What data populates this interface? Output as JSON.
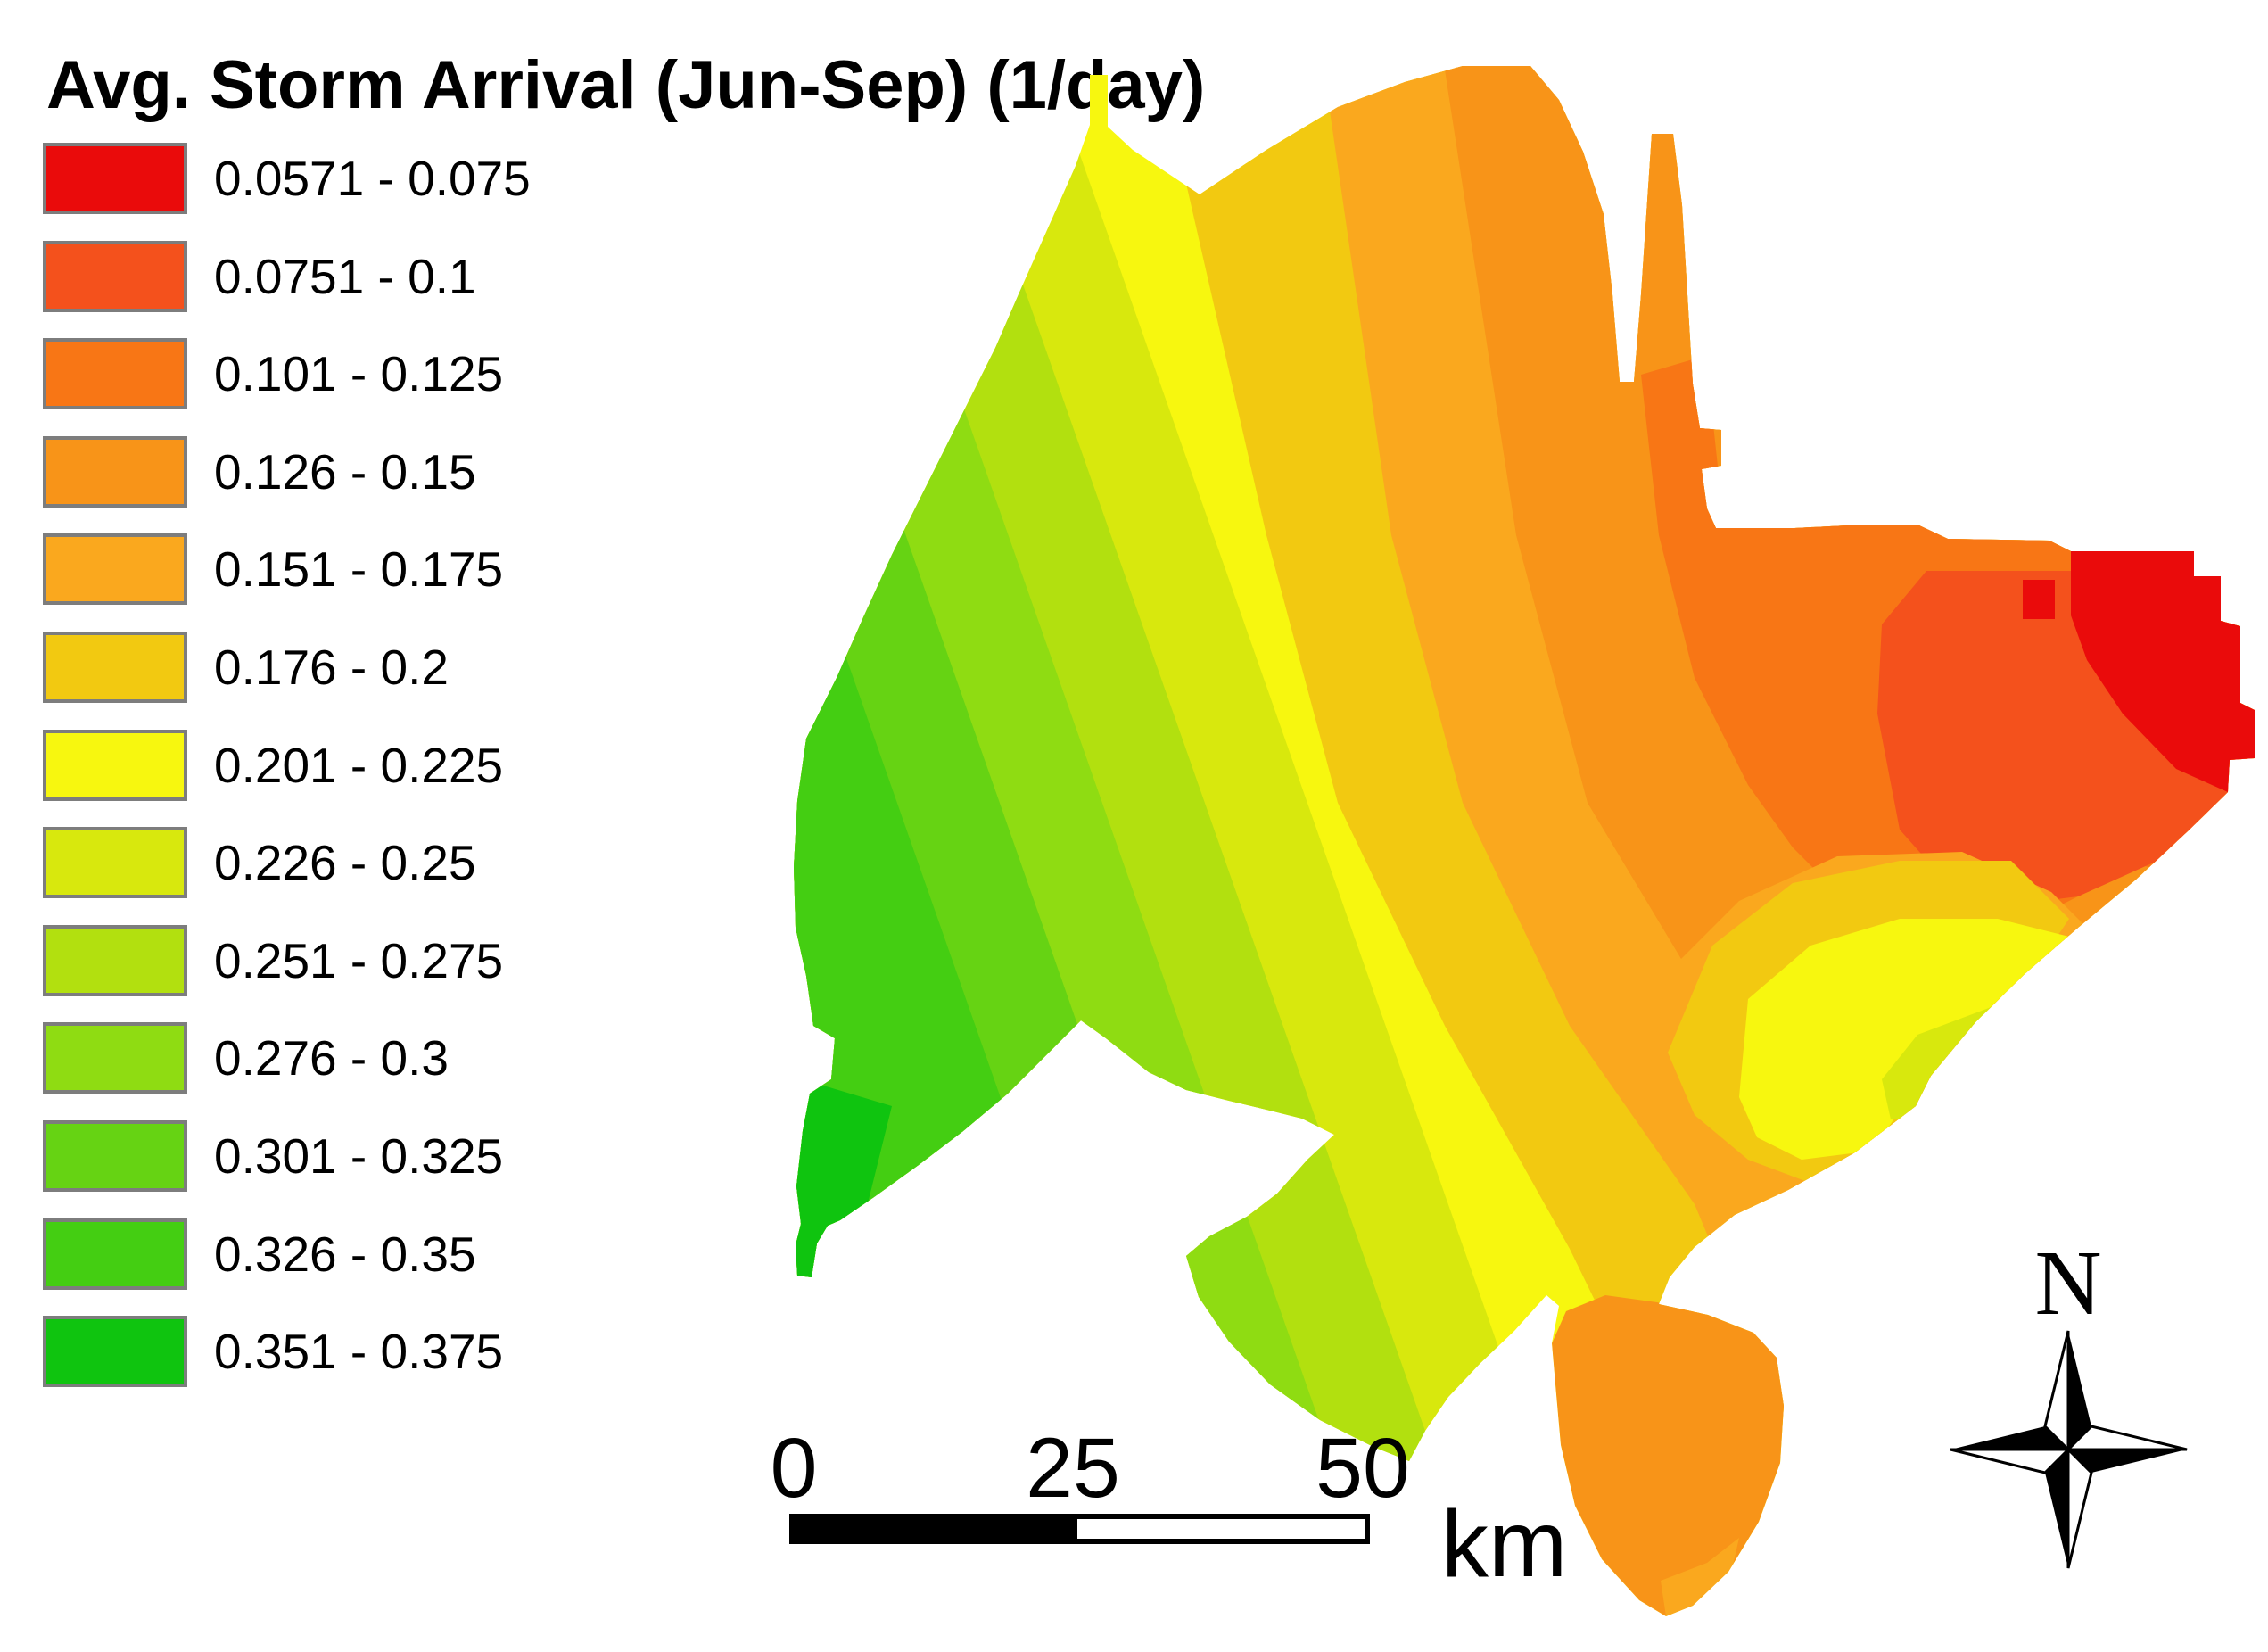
{
  "title": "Avg. Storm Arrival (Jun-Sep) (1/day)",
  "legend": {
    "items": [
      {
        "label": "0.0571 - 0.075",
        "color": "#EA0B0B"
      },
      {
        "label": "0.0751 - 0.1",
        "color": "#F4511C"
      },
      {
        "label": "0.101 - 0.125",
        "color": "#F87615"
      },
      {
        "label": "0.126 - 0.15",
        "color": "#F89418"
      },
      {
        "label": "0.151 - 0.175",
        "color": "#FAA81E"
      },
      {
        "label": "0.176 - 0.2",
        "color": "#F2C911"
      },
      {
        "label": "0.201 - 0.225",
        "color": "#F7F70F"
      },
      {
        "label": "0.226 - 0.25",
        "color": "#D8E80D"
      },
      {
        "label": "0.251 - 0.275",
        "color": "#B2E00F"
      },
      {
        "label": "0.276 - 0.3",
        "color": "#8FDC12"
      },
      {
        "label": "0.301 - 0.325",
        "color": "#66D313"
      },
      {
        "label": "0.326 - 0.35",
        "color": "#44CE12"
      },
      {
        "label": "0.351 - 0.375",
        "color": "#0FC40F"
      }
    ]
  },
  "scale_bar": {
    "ticks": [
      "0",
      "25",
      "50"
    ],
    "unit": "km"
  },
  "north_arrow": {
    "label": "N"
  }
}
